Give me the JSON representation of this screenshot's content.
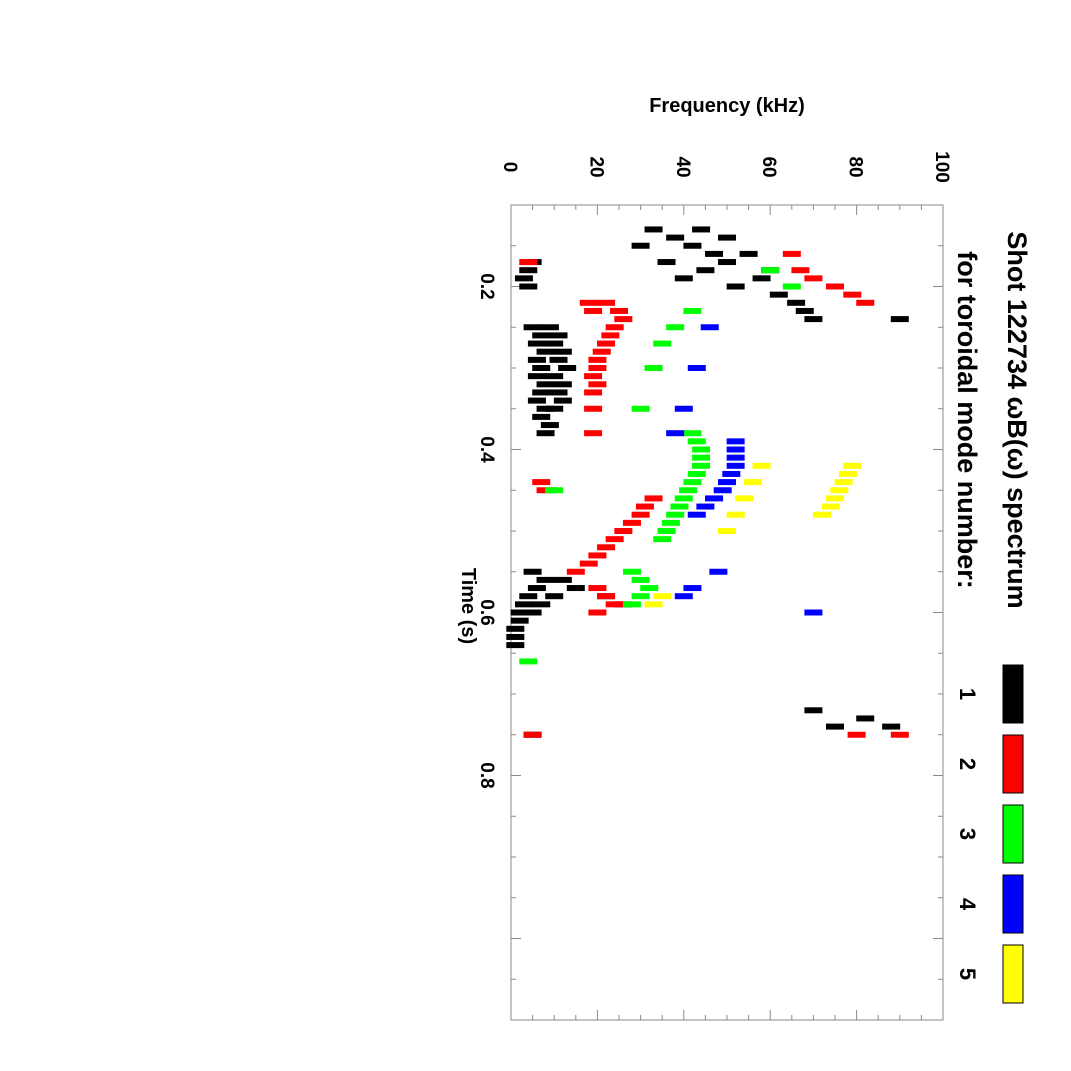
{
  "chart_data": {
    "type": "scatter",
    "title_line1": "Shot 122734 ωB(ω) spectrum",
    "title_line2": "for toroidal mode number:",
    "xlabel": "Time (s)",
    "ylabel": "Frequency (kHz)",
    "xlim": [
      0.1,
      1.1
    ],
    "ylim": [
      0,
      100
    ],
    "x_ticks": [
      "0.2",
      "0.4",
      "0.6",
      "0.8"
    ],
    "x_tick_values": [
      0.2,
      0.4,
      0.6,
      0.8
    ],
    "y_ticks": [
      "0",
      "20",
      "40",
      "60",
      "80",
      "100"
    ],
    "y_tick_values": [
      0,
      20,
      40,
      60,
      80,
      100
    ],
    "orientation": "rotated 90 degrees clockwise (time runs top-to-bottom, frequency runs left-to-right)",
    "legend_position": "right",
    "series": [
      {
        "name": "1",
        "color": "#000000",
        "points": [
          [
            0.13,
            33
          ],
          [
            0.13,
            44
          ],
          [
            0.14,
            38
          ],
          [
            0.14,
            50
          ],
          [
            0.15,
            30
          ],
          [
            0.15,
            42
          ],
          [
            0.16,
            47
          ],
          [
            0.16,
            55
          ],
          [
            0.17,
            36
          ],
          [
            0.17,
            50
          ],
          [
            0.18,
            45
          ],
          [
            0.18,
            60
          ],
          [
            0.19,
            40
          ],
          [
            0.19,
            58
          ],
          [
            0.17,
            5
          ],
          [
            0.18,
            4
          ],
          [
            0.19,
            3
          ],
          [
            0.2,
            4
          ],
          [
            0.2,
            52
          ],
          [
            0.21,
            62
          ],
          [
            0.22,
            66
          ],
          [
            0.23,
            68
          ],
          [
            0.24,
            70
          ],
          [
            0.24,
            90
          ],
          [
            0.25,
            5
          ],
          [
            0.25,
            9
          ],
          [
            0.26,
            7
          ],
          [
            0.26,
            11
          ],
          [
            0.27,
            6
          ],
          [
            0.27,
            10
          ],
          [
            0.28,
            8
          ],
          [
            0.28,
            12
          ],
          [
            0.29,
            6
          ],
          [
            0.29,
            11
          ],
          [
            0.3,
            7
          ],
          [
            0.3,
            13
          ],
          [
            0.31,
            6
          ],
          [
            0.31,
            10
          ],
          [
            0.32,
            8
          ],
          [
            0.32,
            12
          ],
          [
            0.33,
            7
          ],
          [
            0.33,
            11
          ],
          [
            0.34,
            6
          ],
          [
            0.34,
            12
          ],
          [
            0.35,
            8
          ],
          [
            0.35,
            10
          ],
          [
            0.36,
            7
          ],
          [
            0.37,
            9
          ],
          [
            0.38,
            8
          ],
          [
            0.55,
            5
          ],
          [
            0.56,
            8
          ],
          [
            0.56,
            12
          ],
          [
            0.57,
            6
          ],
          [
            0.57,
            15
          ],
          [
            0.58,
            4
          ],
          [
            0.58,
            10
          ],
          [
            0.59,
            3
          ],
          [
            0.59,
            7
          ],
          [
            0.6,
            2
          ],
          [
            0.6,
            5
          ],
          [
            0.61,
            2
          ],
          [
            0.62,
            1
          ],
          [
            0.63,
            1
          ],
          [
            0.64,
            1
          ],
          [
            0.58,
            22
          ],
          [
            0.59,
            26
          ],
          [
            0.72,
            70
          ],
          [
            0.73,
            82
          ],
          [
            0.74,
            88
          ],
          [
            0.75,
            5
          ],
          [
            0.74,
            75
          ]
        ]
      },
      {
        "name": "2",
        "color": "#ff0000",
        "points": [
          [
            0.18,
            67
          ],
          [
            0.19,
            70
          ],
          [
            0.2,
            75
          ],
          [
            0.21,
            79
          ],
          [
            0.22,
            82
          ],
          [
            0.16,
            65
          ],
          [
            0.17,
            4
          ],
          [
            0.22,
            18
          ],
          [
            0.22,
            22
          ],
          [
            0.23,
            19
          ],
          [
            0.23,
            25
          ],
          [
            0.24,
            26
          ],
          [
            0.25,
            24
          ],
          [
            0.26,
            23
          ],
          [
            0.27,
            22
          ],
          [
            0.28,
            21
          ],
          [
            0.29,
            20
          ],
          [
            0.3,
            20
          ],
          [
            0.31,
            19
          ],
          [
            0.32,
            20
          ],
          [
            0.33,
            19
          ],
          [
            0.35,
            19
          ],
          [
            0.38,
            19
          ],
          [
            0.44,
            7
          ],
          [
            0.45,
            8
          ],
          [
            0.46,
            33
          ],
          [
            0.47,
            31
          ],
          [
            0.48,
            30
          ],
          [
            0.49,
            28
          ],
          [
            0.5,
            26
          ],
          [
            0.51,
            24
          ],
          [
            0.52,
            22
          ],
          [
            0.53,
            20
          ],
          [
            0.54,
            18
          ],
          [
            0.55,
            15
          ],
          [
            0.57,
            20
          ],
          [
            0.58,
            22
          ],
          [
            0.59,
            24
          ],
          [
            0.6,
            20
          ],
          [
            0.75,
            80
          ],
          [
            0.75,
            90
          ],
          [
            0.75,
            5
          ]
        ]
      },
      {
        "name": "3",
        "color": "#00ff00",
        "points": [
          [
            0.18,
            60
          ],
          [
            0.2,
            65
          ],
          [
            0.23,
            42
          ],
          [
            0.25,
            38
          ],
          [
            0.27,
            35
          ],
          [
            0.3,
            33
          ],
          [
            0.35,
            30
          ],
          [
            0.38,
            42
          ],
          [
            0.39,
            43
          ],
          [
            0.4,
            44
          ],
          [
            0.41,
            44
          ],
          [
            0.42,
            44
          ],
          [
            0.43,
            43
          ],
          [
            0.44,
            42
          ],
          [
            0.45,
            41
          ],
          [
            0.46,
            40
          ],
          [
            0.47,
            39
          ],
          [
            0.48,
            38
          ],
          [
            0.49,
            37
          ],
          [
            0.5,
            36
          ],
          [
            0.51,
            35
          ],
          [
            0.55,
            28
          ],
          [
            0.56,
            30
          ],
          [
            0.57,
            32
          ],
          [
            0.58,
            30
          ],
          [
            0.59,
            28
          ],
          [
            0.45,
            10
          ],
          [
            0.66,
            4
          ]
        ]
      },
      {
        "name": "4",
        "color": "#0000ff",
        "points": [
          [
            0.25,
            46
          ],
          [
            0.3,
            43
          ],
          [
            0.35,
            40
          ],
          [
            0.38,
            38
          ],
          [
            0.39,
            52
          ],
          [
            0.4,
            52
          ],
          [
            0.41,
            52
          ],
          [
            0.42,
            52
          ],
          [
            0.43,
            51
          ],
          [
            0.44,
            50
          ],
          [
            0.45,
            49
          ],
          [
            0.46,
            47
          ],
          [
            0.47,
            45
          ],
          [
            0.48,
            43
          ],
          [
            0.55,
            48
          ],
          [
            0.57,
            42
          ],
          [
            0.58,
            40
          ],
          [
            0.6,
            70
          ]
        ]
      },
      {
        "name": "5",
        "color": "#ffff00",
        "points": [
          [
            0.42,
            58
          ],
          [
            0.44,
            56
          ],
          [
            0.46,
            54
          ],
          [
            0.48,
            52
          ],
          [
            0.5,
            50
          ],
          [
            0.42,
            79
          ],
          [
            0.43,
            78
          ],
          [
            0.44,
            77
          ],
          [
            0.45,
            76
          ],
          [
            0.46,
            75
          ],
          [
            0.47,
            74
          ],
          [
            0.48,
            72
          ],
          [
            0.58,
            35
          ],
          [
            0.59,
            33
          ]
        ]
      }
    ]
  },
  "legend": {
    "items": [
      {
        "label": "1",
        "color": "#000000"
      },
      {
        "label": "2",
        "color": "#ff0000"
      },
      {
        "label": "3",
        "color": "#00ff00"
      },
      {
        "label": "4",
        "color": "#0000ff"
      },
      {
        "label": "5",
        "color": "#ffff00"
      }
    ]
  }
}
